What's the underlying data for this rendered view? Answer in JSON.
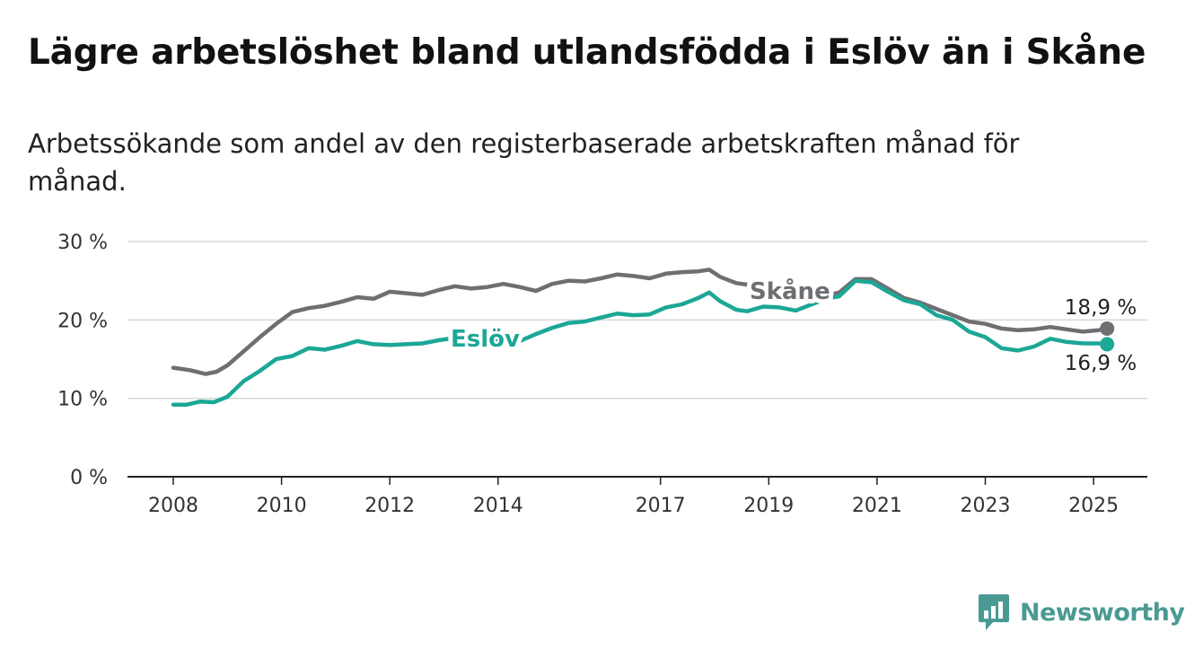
{
  "title": "Lägre arbetslöshet bland utlandsfödda i Eslöv än i Skåne",
  "subtitle": "Arbetssökande som andel av den registerbaserade arbetskraften månad för månad.",
  "brand": {
    "name": "Newsworthy",
    "icon": "bar-chart-logo-icon",
    "color": "#4a9a93"
  },
  "chart_data": {
    "type": "line",
    "title": "Lägre arbetslöshet bland utlandsfödda i Eslöv än i Skåne",
    "subtitle": "Arbetssökande som andel av den registerbaserade arbetskraften månad för månad.",
    "xlabel": "",
    "ylabel": "",
    "ylim": [
      0,
      30
    ],
    "xlim": [
      2007.6,
      2026.1
    ],
    "y_ticks": [
      0,
      10,
      20,
      30
    ],
    "y_tick_labels": [
      "0 %",
      "10 %",
      "20 %",
      "30 %"
    ],
    "x_ticks": [
      2008,
      2010,
      2012,
      2014,
      2017,
      2019,
      2021,
      2023,
      2025
    ],
    "x_tick_labels": [
      "2008",
      "2010",
      "2012",
      "2014",
      "2017",
      "2019",
      "2021",
      "2023",
      "2025"
    ],
    "grid": true,
    "legend": "inline labels on lines",
    "series": [
      {
        "name": "Skåne",
        "color": "#6e6e73",
        "end_label": "18,9 %",
        "points": [
          [
            2008.0,
            13.9
          ],
          [
            2008.3,
            13.6
          ],
          [
            2008.6,
            13.1
          ],
          [
            2008.8,
            13.4
          ],
          [
            2009.0,
            14.2
          ],
          [
            2009.3,
            16.0
          ],
          [
            2009.6,
            17.8
          ],
          [
            2009.9,
            19.5
          ],
          [
            2010.2,
            21.0
          ],
          [
            2010.5,
            21.5
          ],
          [
            2010.8,
            21.8
          ],
          [
            2011.1,
            22.3
          ],
          [
            2011.4,
            22.9
          ],
          [
            2011.7,
            22.7
          ],
          [
            2012.0,
            23.6
          ],
          [
            2012.3,
            23.4
          ],
          [
            2012.6,
            23.2
          ],
          [
            2012.9,
            23.8
          ],
          [
            2013.2,
            24.3
          ],
          [
            2013.5,
            24.0
          ],
          [
            2013.8,
            24.2
          ],
          [
            2014.1,
            24.6
          ],
          [
            2014.4,
            24.2
          ],
          [
            2014.7,
            23.7
          ],
          [
            2015.0,
            24.6
          ],
          [
            2015.3,
            25.0
          ],
          [
            2015.6,
            24.9
          ],
          [
            2015.9,
            25.3
          ],
          [
            2016.2,
            25.8
          ],
          [
            2016.5,
            25.6
          ],
          [
            2016.8,
            25.3
          ],
          [
            2017.1,
            25.9
          ],
          [
            2017.4,
            26.1
          ],
          [
            2017.7,
            26.2
          ],
          [
            2017.9,
            26.4
          ],
          [
            2018.1,
            25.5
          ],
          [
            2018.4,
            24.7
          ],
          [
            2018.6,
            24.5
          ],
          [
            2018.9,
            24.6
          ],
          [
            2019.2,
            24.4
          ],
          [
            2019.5,
            24.0
          ],
          [
            2019.8,
            23.5
          ],
          [
            2020.1,
            23.2
          ],
          [
            2020.3,
            23.5
          ],
          [
            2020.6,
            25.2
          ],
          [
            2020.9,
            25.2
          ],
          [
            2021.2,
            24.0
          ],
          [
            2021.5,
            22.8
          ],
          [
            2021.8,
            22.2
          ],
          [
            2022.1,
            21.4
          ],
          [
            2022.4,
            20.6
          ],
          [
            2022.7,
            19.8
          ],
          [
            2023.0,
            19.5
          ],
          [
            2023.3,
            18.9
          ],
          [
            2023.6,
            18.7
          ],
          [
            2023.9,
            18.8
          ],
          [
            2024.2,
            19.1
          ],
          [
            2024.5,
            18.8
          ],
          [
            2024.8,
            18.5
          ],
          [
            2025.1,
            18.7
          ],
          [
            2025.25,
            18.9
          ]
        ]
      },
      {
        "name": "Eslöv",
        "color": "#1ca796",
        "end_label": "16,9 %",
        "points": [
          [
            2008.0,
            9.2
          ],
          [
            2008.25,
            9.2
          ],
          [
            2008.5,
            9.6
          ],
          [
            2008.75,
            9.5
          ],
          [
            2009.0,
            10.2
          ],
          [
            2009.3,
            12.2
          ],
          [
            2009.6,
            13.5
          ],
          [
            2009.9,
            15.0
          ],
          [
            2010.2,
            15.4
          ],
          [
            2010.5,
            16.4
          ],
          [
            2010.8,
            16.2
          ],
          [
            2011.1,
            16.7
          ],
          [
            2011.4,
            17.3
          ],
          [
            2011.7,
            16.9
          ],
          [
            2012.0,
            16.8
          ],
          [
            2012.3,
            16.9
          ],
          [
            2012.6,
            17.0
          ],
          [
            2012.9,
            17.4
          ],
          [
            2013.2,
            17.7
          ],
          [
            2013.5,
            17.5
          ],
          [
            2013.8,
            17.4
          ],
          [
            2014.1,
            17.6
          ],
          [
            2014.4,
            17.3
          ],
          [
            2014.7,
            18.2
          ],
          [
            2015.0,
            19.0
          ],
          [
            2015.3,
            19.6
          ],
          [
            2015.6,
            19.8
          ],
          [
            2015.9,
            20.3
          ],
          [
            2016.2,
            20.8
          ],
          [
            2016.5,
            20.6
          ],
          [
            2016.8,
            20.7
          ],
          [
            2017.1,
            21.6
          ],
          [
            2017.4,
            22.0
          ],
          [
            2017.7,
            22.8
          ],
          [
            2017.9,
            23.5
          ],
          [
            2018.1,
            22.4
          ],
          [
            2018.4,
            21.3
          ],
          [
            2018.6,
            21.1
          ],
          [
            2018.9,
            21.7
          ],
          [
            2019.2,
            21.6
          ],
          [
            2019.5,
            21.2
          ],
          [
            2019.8,
            22.0
          ],
          [
            2020.1,
            22.8
          ],
          [
            2020.3,
            23.0
          ],
          [
            2020.6,
            25.0
          ],
          [
            2020.9,
            24.8
          ],
          [
            2021.2,
            23.6
          ],
          [
            2021.5,
            22.5
          ],
          [
            2021.8,
            22.0
          ],
          [
            2022.1,
            20.6
          ],
          [
            2022.4,
            20.0
          ],
          [
            2022.7,
            18.5
          ],
          [
            2023.0,
            17.8
          ],
          [
            2023.3,
            16.4
          ],
          [
            2023.6,
            16.1
          ],
          [
            2023.9,
            16.6
          ],
          [
            2024.2,
            17.6
          ],
          [
            2024.5,
            17.2
          ],
          [
            2024.8,
            17.0
          ],
          [
            2025.1,
            17.0
          ],
          [
            2025.25,
            16.9
          ]
        ]
      }
    ]
  }
}
